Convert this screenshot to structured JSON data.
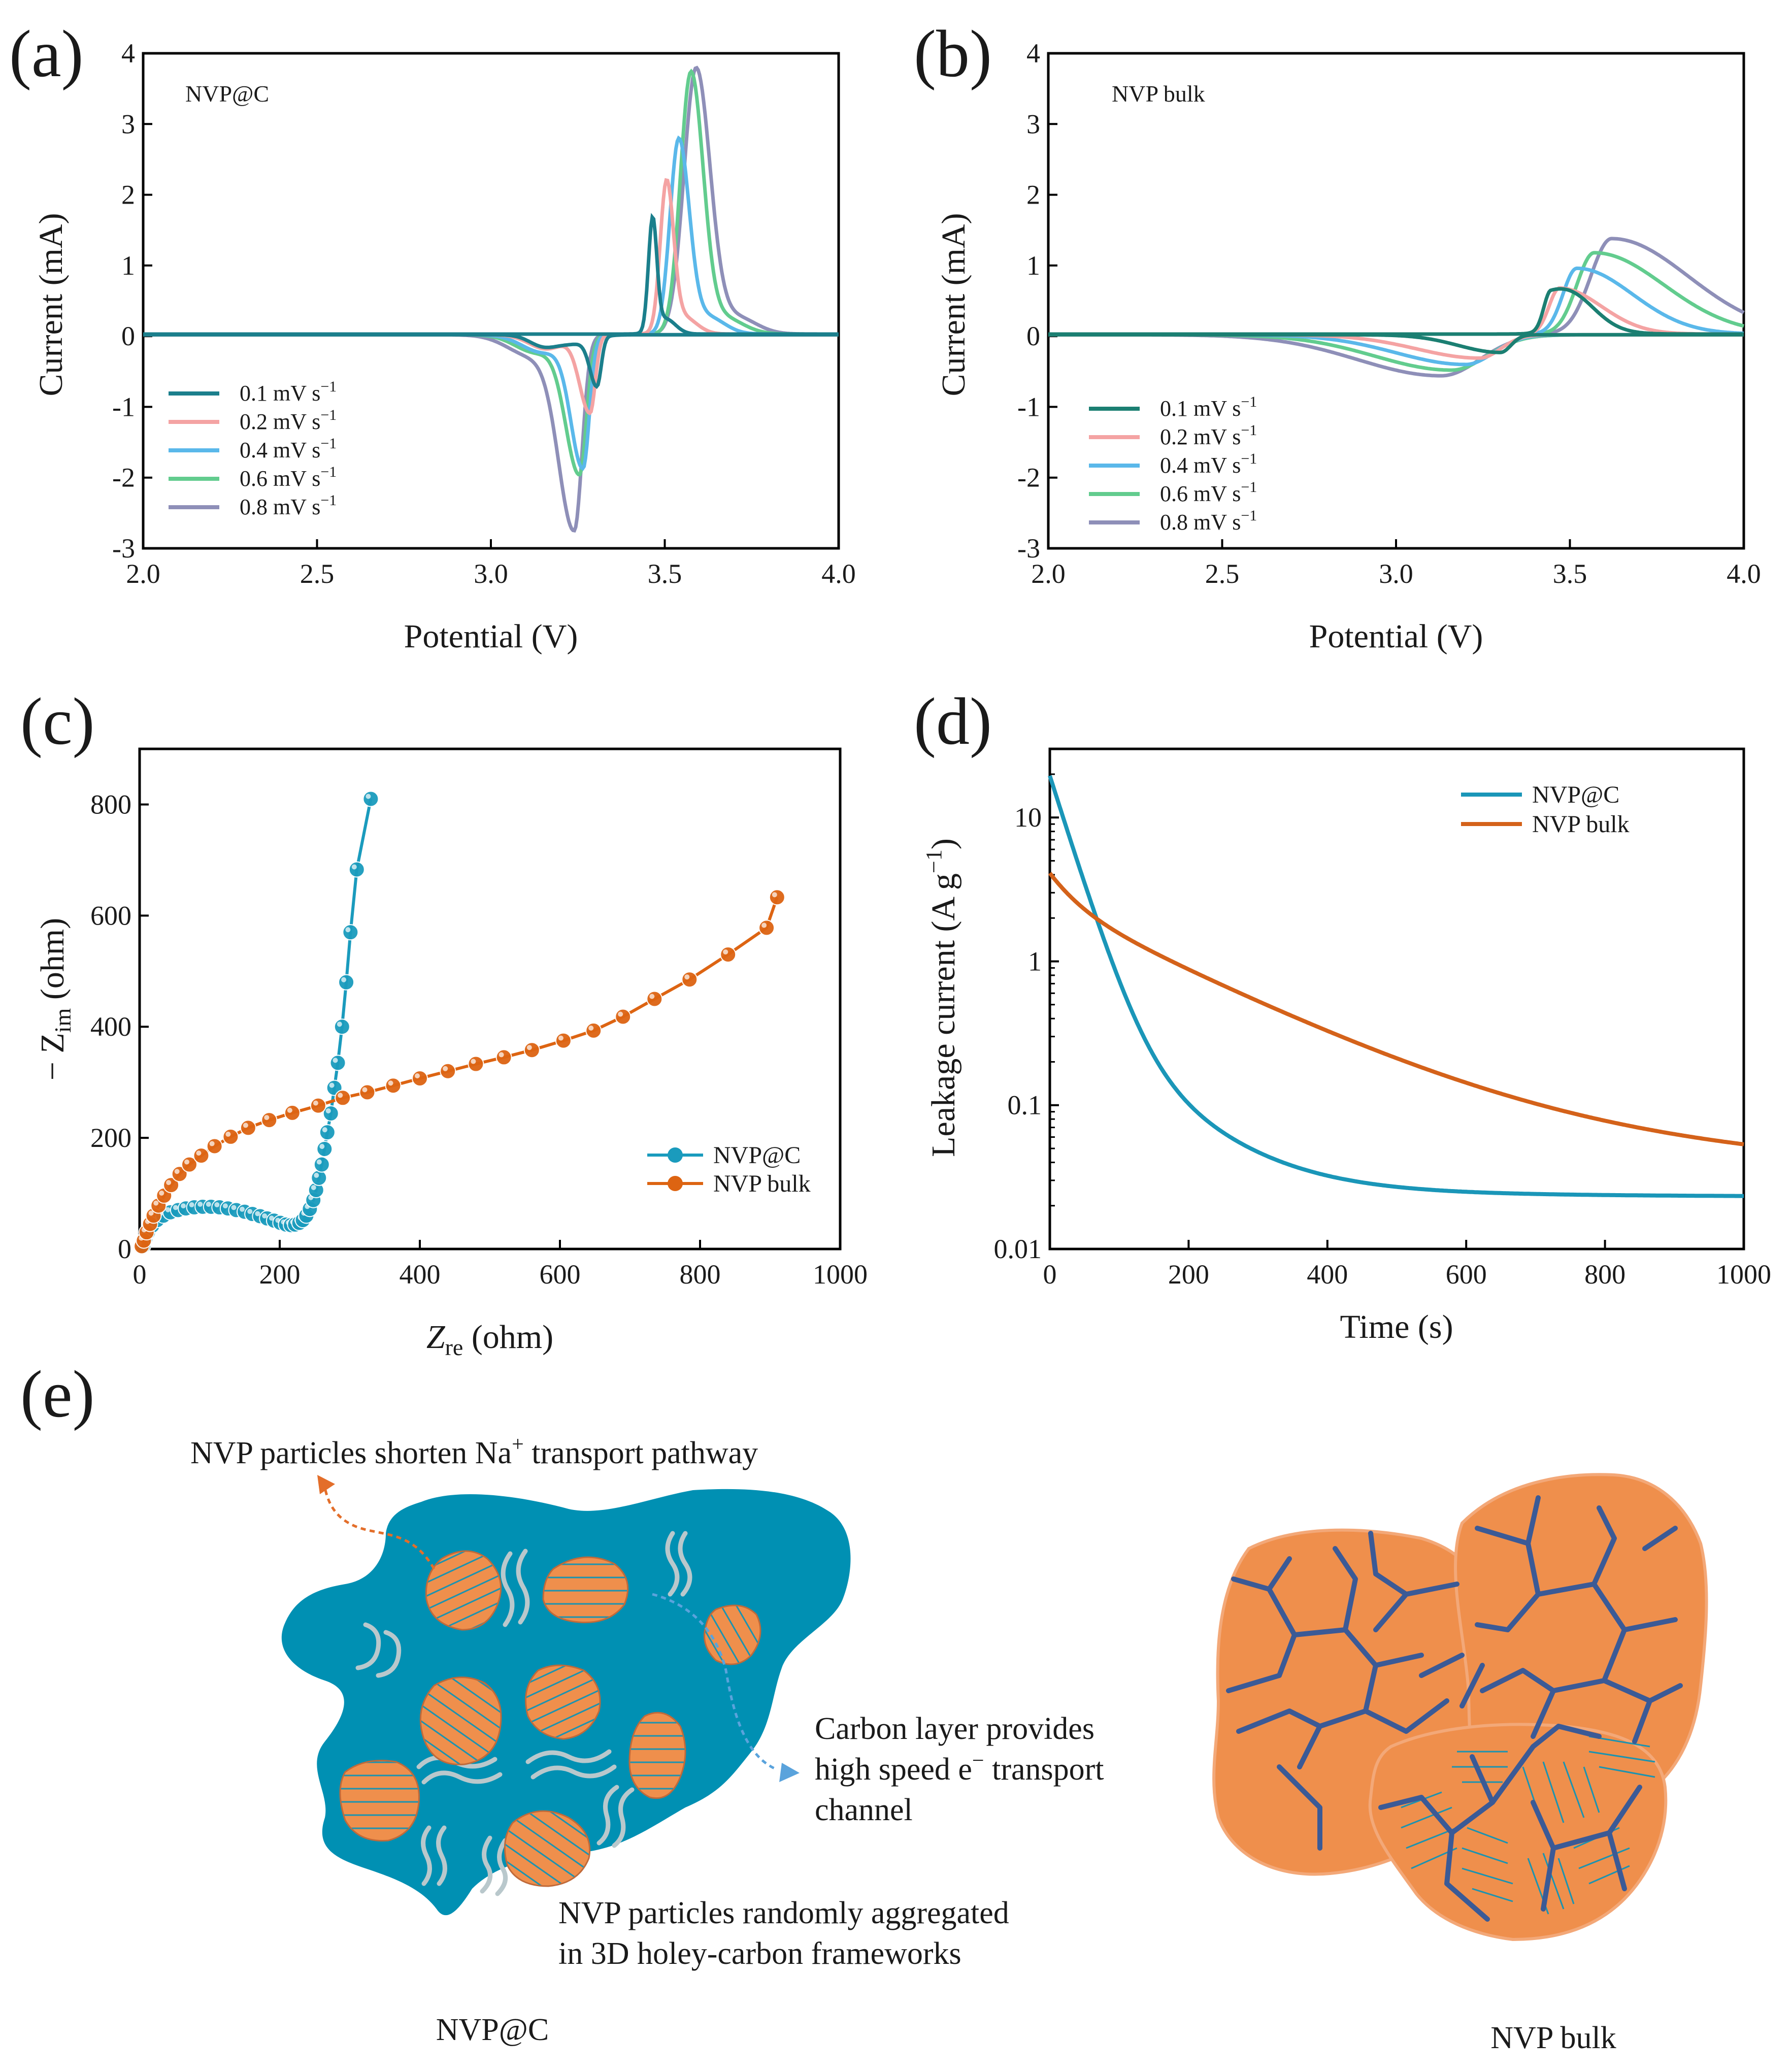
{
  "chart_data": [
    {
      "id": "a",
      "type": "line",
      "panel_label": "(a)",
      "annotation": "NVP@C",
      "xlabel": "Potential (V)",
      "ylabel": "Current (mA)",
      "xlim": [
        2.0,
        4.0
      ],
      "ylim": [
        -3,
        4
      ],
      "xticks": [
        "2.0",
        "2.5",
        "3.0",
        "3.5",
        "4.0"
      ],
      "yticks": [
        "-3",
        "-2",
        "-1",
        "0",
        "1",
        "2",
        "3",
        "4"
      ],
      "legend_position": "bottom-left",
      "series": [
        {
          "name": "0.1 mV s",
          "unit_sup": "−1",
          "color": "#1b7f8c",
          "anodic": {
            "peak_x": 3.465,
            "peak_y": 1.55,
            "width_left": 0.012,
            "width_right": 0.012,
            "extra": [
              [
                3.5,
                0.22,
                0.03
              ]
            ]
          },
          "cathodic": {
            "peak_x": 3.305,
            "peak_y": -0.68,
            "width_left": 0.02,
            "width_right": 0.012,
            "extra": [
              [
                3.15,
                -0.15,
                0.04
              ],
              [
                3.24,
                -0.12,
                0.05
              ]
            ]
          }
        },
        {
          "name": "0.2 mV s",
          "unit_sup": "−1",
          "color": "#f4a3a3",
          "anodic": {
            "peak_x": 3.505,
            "peak_y": 2.05,
            "width_left": 0.018,
            "width_right": 0.02,
            "extra": [
              [
                3.55,
                0.25,
                0.04
              ]
            ]
          },
          "cathodic": {
            "peak_x": 3.285,
            "peak_y": -1.1,
            "width_left": 0.03,
            "width_right": 0.015,
            "extra": [
              [
                3.16,
                -0.2,
                0.05
              ]
            ]
          }
        },
        {
          "name": "0.4 mV s",
          "unit_sup": "−1",
          "color": "#5ab8ea",
          "anodic": {
            "peak_x": 3.54,
            "peak_y": 2.7,
            "width_left": 0.025,
            "width_right": 0.03,
            "extra": [
              [
                3.62,
                0.25,
                0.05
              ]
            ]
          },
          "cathodic": {
            "peak_x": 3.265,
            "peak_y": -1.85,
            "width_left": 0.035,
            "width_right": 0.018,
            "extra": [
              [
                3.15,
                -0.25,
                0.06
              ]
            ]
          }
        },
        {
          "name": "0.6 mV s",
          "unit_sup": "−1",
          "color": "#62cc8e",
          "anodic": {
            "peak_x": 3.575,
            "peak_y": 3.62,
            "width_left": 0.03,
            "width_right": 0.035,
            "extra": [
              [
                3.66,
                0.25,
                0.06
              ]
            ]
          },
          "cathodic": {
            "peak_x": 3.255,
            "peak_y": -1.95,
            "width_left": 0.04,
            "width_right": 0.02,
            "extra": [
              [
                3.13,
                -0.25,
                0.06
              ]
            ]
          }
        },
        {
          "name": "0.8 mV s",
          "unit_sup": "−1",
          "color": "#8e8fb8",
          "anodic": {
            "peak_x": 3.59,
            "peak_y": 3.72,
            "width_left": 0.035,
            "width_right": 0.04,
            "extra": [
              [
                3.7,
                0.25,
                0.06
              ]
            ]
          },
          "cathodic": {
            "peak_x": 3.24,
            "peak_y": -2.7,
            "width_left": 0.045,
            "width_right": 0.022,
            "extra": [
              [
                3.12,
                -0.3,
                0.07
              ]
            ]
          }
        }
      ]
    },
    {
      "id": "b",
      "type": "line",
      "panel_label": "(b)",
      "annotation": "NVP bulk",
      "xlabel": "Potential (V)",
      "ylabel": "Current (mA)",
      "xlim": [
        2.0,
        4.0
      ],
      "ylim": [
        -3,
        4
      ],
      "xticks": [
        "2.0",
        "2.5",
        "3.0",
        "3.5",
        "4.0"
      ],
      "yticks": [
        "-3",
        "-2",
        "-1",
        "0",
        "1",
        "2",
        "3",
        "4"
      ],
      "legend_position": "left",
      "series": [
        {
          "name": "0.1 mV s",
          "unit_sup": "−1",
          "color": "#1b7f72",
          "anodic": {
            "peak_x": 3.445,
            "peak_y": 0.55,
            "width_left": 0.02,
            "width_right": 0.1,
            "extra": [
              [
                3.52,
                0.15,
                0.06
              ]
            ]
          },
          "cathodic": {
            "peak_x": 3.3,
            "peak_y": -0.25,
            "width_left": 0.12,
            "width_right": 0.03,
            "extra": []
          }
        },
        {
          "name": "0.2 mV s",
          "unit_sup": "−1",
          "color": "#f4a3a3",
          "anodic": {
            "peak_x": 3.47,
            "peak_y": 0.65,
            "width_left": 0.03,
            "width_right": 0.12,
            "extra": []
          },
          "cathodic": {
            "peak_x": 3.24,
            "peak_y": -0.33,
            "width_left": 0.18,
            "width_right": 0.06,
            "extra": []
          }
        },
        {
          "name": "0.4 mV s",
          "unit_sup": "−1",
          "color": "#5ab8ea",
          "anodic": {
            "peak_x": 3.52,
            "peak_y": 0.93,
            "width_left": 0.04,
            "width_right": 0.16,
            "extra": []
          },
          "cathodic": {
            "peak_x": 3.2,
            "peak_y": -0.42,
            "width_left": 0.2,
            "width_right": 0.08,
            "extra": []
          }
        },
        {
          "name": "0.6 mV s",
          "unit_sup": "−1",
          "color": "#62cc8e",
          "anodic": {
            "peak_x": 3.57,
            "peak_y": 1.15,
            "width_left": 0.05,
            "width_right": 0.2,
            "extra": []
          },
          "cathodic": {
            "peak_x": 3.16,
            "peak_y": -0.5,
            "width_left": 0.22,
            "width_right": 0.1,
            "extra": []
          }
        },
        {
          "name": "0.8 mV s",
          "unit_sup": "−1",
          "color": "#8e8fb8",
          "anodic": {
            "peak_x": 3.62,
            "peak_y": 1.35,
            "width_left": 0.06,
            "width_right": 0.22,
            "extra": []
          },
          "cathodic": {
            "peak_x": 3.13,
            "peak_y": -0.58,
            "width_left": 0.24,
            "width_right": 0.11,
            "extra": []
          }
        }
      ]
    },
    {
      "id": "c",
      "type": "scatter",
      "panel_label": "(c)",
      "xlabel": "Z",
      "xlabel_sub": "re",
      "xlabel_unit": " (ohm)",
      "ylabel": "− Z",
      "ylabel_sub": "im",
      "ylabel_unit": " (ohm)",
      "xlim": [
        0,
        1000
      ],
      "ylim": [
        0,
        900
      ],
      "xticks": [
        "0",
        "200",
        "400",
        "600",
        "800",
        "1000"
      ],
      "yticks": [
        "0",
        "200",
        "400",
        "600",
        "800"
      ],
      "legend_position": "bottom-right",
      "series": [
        {
          "name": "NVP@C",
          "color": "#1a9bbd",
          "points": [
            [
              5,
              5
            ],
            [
              8,
              18
            ],
            [
              12,
              30
            ],
            [
              18,
              42
            ],
            [
              25,
              52
            ],
            [
              34,
              60
            ],
            [
              44,
              66
            ],
            [
              55,
              70
            ],
            [
              66,
              73
            ],
            [
              78,
              75
            ],
            [
              90,
              76
            ],
            [
              102,
              76
            ],
            [
              114,
              75
            ],
            [
              126,
              73
            ],
            [
              138,
              70
            ],
            [
              150,
              67
            ],
            [
              161,
              63
            ],
            [
              172,
              59
            ],
            [
              182,
              55
            ],
            [
              192,
              51
            ],
            [
              201,
              47
            ],
            [
              209,
              44
            ],
            [
              216,
              43
            ],
            [
              222,
              44
            ],
            [
              228,
              47
            ],
            [
              233,
              52
            ],
            [
              238,
              60
            ],
            [
              243,
              72
            ],
            [
              248,
              88
            ],
            [
              252,
              106
            ],
            [
              256,
              128
            ],
            [
              260,
              152
            ],
            [
              264,
              180
            ],
            [
              268,
              210
            ],
            [
              273,
              244
            ],
            [
              278,
              290
            ],
            [
              283,
              335
            ],
            [
              289,
              400
            ],
            [
              295,
              480
            ],
            [
              301,
              570
            ],
            [
              310,
              683
            ],
            [
              330,
              810
            ]
          ]
        },
        {
          "name": "NVP bulk",
          "color": "#dd6412",
          "points": [
            [
              3,
              5
            ],
            [
              6,
              15
            ],
            [
              10,
              30
            ],
            [
              15,
              45
            ],
            [
              20,
              60
            ],
            [
              27,
              78
            ],
            [
              35,
              96
            ],
            [
              45,
              115
            ],
            [
              57,
              135
            ],
            [
              71,
              152
            ],
            [
              88,
              168
            ],
            [
              107,
              185
            ],
            [
              130,
              202
            ],
            [
              155,
              218
            ],
            [
              185,
              232
            ],
            [
              218,
              245
            ],
            [
              255,
              258
            ],
            [
              290,
              272
            ],
            [
              325,
              282
            ],
            [
              362,
              294
            ],
            [
              400,
              307
            ],
            [
              440,
              320
            ],
            [
              480,
              333
            ],
            [
              520,
              345
            ],
            [
              560,
              358
            ],
            [
              605,
              375
            ],
            [
              648,
              393
            ],
            [
              690,
              418
            ],
            [
              735,
              450
            ],
            [
              785,
              485
            ],
            [
              840,
              530
            ],
            [
              895,
              578
            ],
            [
              910,
              633
            ]
          ]
        }
      ]
    },
    {
      "id": "d",
      "type": "line",
      "panel_label": "(d)",
      "xlabel": "Time (s)",
      "ylabel": "Leakage current (A g",
      "ylabel_sup": "−1",
      "ylabel_close": ")",
      "xlim": [
        0,
        1000
      ],
      "ylim": [
        0.01,
        30
      ],
      "yscale": "log",
      "xticks": [
        "0",
        "200",
        "400",
        "600",
        "800",
        "1000"
      ],
      "yticks": [
        "0.01",
        "0.1",
        "1",
        "10"
      ],
      "legend_position": "top-right",
      "series": [
        {
          "name": "NVP@C",
          "color": "#1a96b8",
          "model": {
            "a": 19,
            "tau": 28,
            "b": 0.5,
            "tau2": 95,
            "c": 0.006,
            "tau3": 350,
            "base": 0.023
          }
        },
        {
          "name": "NVP bulk",
          "color": "#d4621a",
          "model": {
            "a": 1.6,
            "tau": 35,
            "b": 2.4,
            "tau2": 180,
            "c": 0.075,
            "tau3": 600,
            "base": 0.03
          }
        }
      ]
    }
  ],
  "schematic": {
    "panel_label": "(e)",
    "callout_top": "NVP particles shorten Na",
    "callout_top_sup": "+",
    "callout_top_end": " transport pathway",
    "callout_right_line1": "Carbon layer provides",
    "callout_right_line2_a": "high speed e",
    "callout_right_line2_sup": "−",
    "callout_right_line2_b": " transport",
    "callout_right_line3": "channel",
    "callout_bottom_line1": "NVP particles randomly aggregated",
    "callout_bottom_line2": "in 3D holey-carbon frameworks",
    "caption_left": "NVP@C",
    "caption_right": "NVP bulk",
    "colors": {
      "carbon": "#0090b3",
      "particle": "#ef8f4c",
      "stripe": "#1c93b0",
      "crack": "#3b5a96",
      "rim": "#f3a878",
      "orange_arrow": "#e36e2a",
      "blue_arrow": "#5aa3dc"
    }
  }
}
